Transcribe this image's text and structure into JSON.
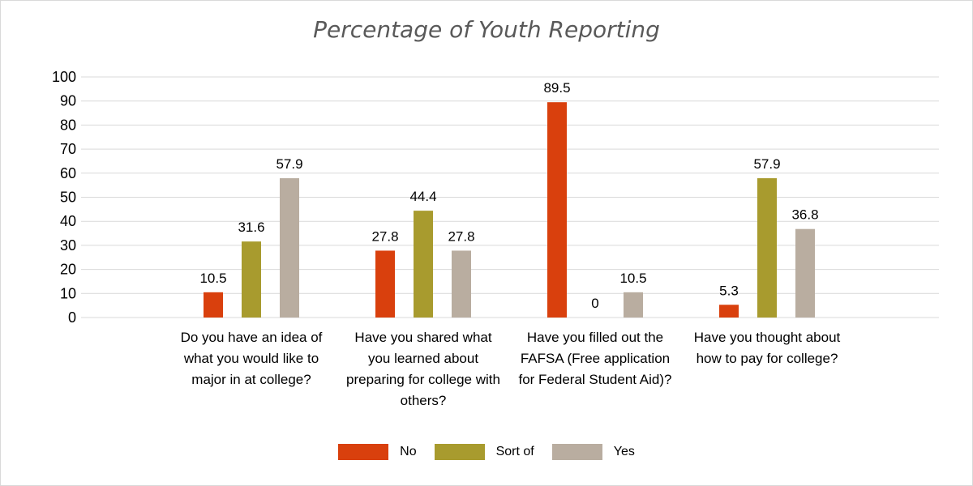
{
  "chart_data": {
    "type": "bar",
    "title": "Percentage of Youth Reporting",
    "categories": [
      "Do you have an idea of what you would like to major in at college?",
      "Have you shared what you learned about preparing for college with others?",
      "Have you filled out the FAFSA (Free application for Federal Student Aid)?",
      "Have you thought about how to pay for college?"
    ],
    "series": [
      {
        "name": "No",
        "color": "#d9400d",
        "values": [
          10.5,
          27.8,
          89.5,
          5.3
        ]
      },
      {
        "name": "Sort of",
        "color": "#a89b2e",
        "values": [
          31.6,
          44.4,
          0,
          57.9
        ]
      },
      {
        "name": "Yes",
        "color": "#b9ada0",
        "values": [
          57.9,
          27.8,
          10.5,
          36.8
        ]
      }
    ],
    "ylim": [
      0,
      100
    ],
    "yticks": [
      0,
      10,
      20,
      30,
      40,
      50,
      60,
      70,
      80,
      90,
      100
    ],
    "grid": true,
    "legend": "bottom"
  }
}
